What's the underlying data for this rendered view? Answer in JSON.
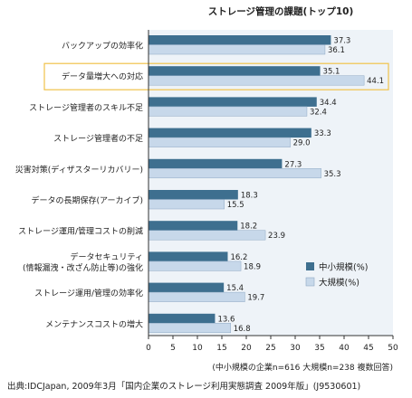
{
  "chart_data": {
    "type": "bar",
    "orientation": "horizontal",
    "title": "ストレージ管理の課題(トップ10)",
    "categories": [
      "バックアップの効率化",
      "データ量増大への対応",
      "ストレージ管理者のスキル不足",
      "ストレージ管理者の不足",
      "災害対策(ディザスターリカバリー)",
      "データの長期保存(アーカイブ)",
      "ストレージ運用/管理コストの削減",
      [
        "データセキュリティ",
        "(情報漏洩・改ざん防止等)の強化"
      ],
      "ストレージ運用/管理の効率化",
      "メンテナンスコストの増大"
    ],
    "highlighted_category_index": 1,
    "series": [
      {
        "name": "中小規模(%)",
        "color": "#3e6f8f",
        "values": [
          37.3,
          35.1,
          34.4,
          33.3,
          27.3,
          18.3,
          18.2,
          16.2,
          15.4,
          13.6
        ]
      },
      {
        "name": "大規模(%)",
        "color": "#c7d8ea",
        "values": [
          36.1,
          44.1,
          32.4,
          29.0,
          35.3,
          15.5,
          23.9,
          18.9,
          19.7,
          16.8
        ]
      }
    ],
    "xlim": [
      0,
      50
    ],
    "xticks": [
      0,
      5,
      10,
      15,
      20,
      25,
      30,
      35,
      40,
      45,
      50
    ],
    "xlabel": "(中小規模の企業n=616 大規模n=238 複数回答)",
    "legend_position": "bottom-right",
    "plot_background": "#eef3f8",
    "highlight_color": "#f0c24a",
    "grid": false
  },
  "source_note": "出典:IDCJapan, 2009年3月「国内企業のストレージ利用実態調査 2009年版」(J9530601)"
}
